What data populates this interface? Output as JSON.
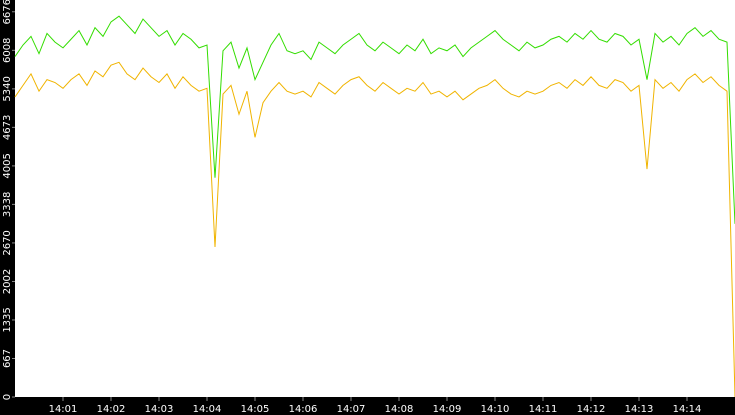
{
  "chart_data": {
    "type": "line",
    "x": [
      "14:00:00",
      "14:00:10",
      "14:00:20",
      "14:00:30",
      "14:00:40",
      "14:00:50",
      "14:01:00",
      "14:01:10",
      "14:01:20",
      "14:01:30",
      "14:01:40",
      "14:01:50",
      "14:02:00",
      "14:02:10",
      "14:02:20",
      "14:02:30",
      "14:02:40",
      "14:02:50",
      "14:03:00",
      "14:03:10",
      "14:03:20",
      "14:03:30",
      "14:03:40",
      "14:03:50",
      "14:04:00",
      "14:04:10",
      "14:04:20",
      "14:04:30",
      "14:04:40",
      "14:04:50",
      "14:05:00",
      "14:05:10",
      "14:05:20",
      "14:05:30",
      "14:05:40",
      "14:05:50",
      "14:06:00",
      "14:06:10",
      "14:06:20",
      "14:06:30",
      "14:06:40",
      "14:06:50",
      "14:07:00",
      "14:07:10",
      "14:07:20",
      "14:07:30",
      "14:07:40",
      "14:07:50",
      "14:08:00",
      "14:08:10",
      "14:08:20",
      "14:08:30",
      "14:08:40",
      "14:08:50",
      "14:09:00",
      "14:09:10",
      "14:09:20",
      "14:09:30",
      "14:09:40",
      "14:09:50",
      "14:10:00",
      "14:10:10",
      "14:10:20",
      "14:10:30",
      "14:10:40",
      "14:10:50",
      "14:11:00",
      "14:11:10",
      "14:11:20",
      "14:11:30",
      "14:11:40",
      "14:11:50",
      "14:12:00",
      "14:12:10",
      "14:12:20",
      "14:12:30",
      "14:12:40",
      "14:12:50",
      "14:13:00",
      "14:13:10",
      "14:13:20",
      "14:13:30",
      "14:13:40",
      "14:13:50",
      "14:14:00",
      "14:14:10",
      "14:14:20",
      "14:14:30",
      "14:14:40",
      "14:14:50",
      "14:15:00"
    ],
    "series": [
      {
        "color": "#33dd00",
        "values": [
          5900,
          6100,
          6250,
          5950,
          6300,
          6150,
          6050,
          6200,
          6350,
          6100,
          6400,
          6250,
          6500,
          6600,
          6450,
          6300,
          6550,
          6400,
          6250,
          6350,
          6100,
          6300,
          6200,
          6050,
          6100,
          3800,
          6000,
          6150,
          5700,
          6050,
          5500,
          5800,
          6100,
          6300,
          6000,
          5950,
          6000,
          5850,
          6150,
          6050,
          5950,
          6100,
          6200,
          6300,
          6100,
          6000,
          6150,
          6050,
          5950,
          6100,
          6000,
          6200,
          5950,
          6050,
          6000,
          6100,
          5900,
          6050,
          6150,
          6250,
          6350,
          6200,
          6100,
          6000,
          6150,
          6050,
          6100,
          6200,
          6250,
          6150,
          6300,
          6200,
          6350,
          6200,
          6150,
          6300,
          6250,
          6100,
          6200,
          5500,
          6300,
          6150,
          6250,
          6100,
          6300,
          6400,
          6250,
          6350,
          6200,
          6150,
          3000
        ]
      },
      {
        "color": "#f0b400",
        "values": [
          5200,
          5400,
          5600,
          5300,
          5500,
          5450,
          5350,
          5500,
          5600,
          5400,
          5650,
          5550,
          5750,
          5800,
          5600,
          5500,
          5700,
          5550,
          5450,
          5600,
          5350,
          5550,
          5400,
          5300,
          5350,
          2600,
          5250,
          5400,
          4900,
          5300,
          4500,
          5100,
          5300,
          5450,
          5300,
          5250,
          5300,
          5200,
          5450,
          5350,
          5250,
          5400,
          5500,
          5550,
          5400,
          5300,
          5450,
          5350,
          5250,
          5350,
          5300,
          5450,
          5250,
          5300,
          5200,
          5300,
          5150,
          5250,
          5350,
          5400,
          5500,
          5350,
          5250,
          5200,
          5300,
          5250,
          5300,
          5400,
          5450,
          5350,
          5500,
          5400,
          5550,
          5400,
          5350,
          5500,
          5450,
          5300,
          5400,
          3950,
          5500,
          5350,
          5450,
          5300,
          5500,
          5600,
          5450,
          5550,
          5400,
          5300,
          0
        ]
      }
    ],
    "xlim": [
      "14:00:00",
      "14:15:00"
    ],
    "xticks": [
      "14:01",
      "14:02",
      "14:03",
      "14:04",
      "14:05",
      "14:06",
      "14:07",
      "14:08",
      "14:09",
      "14:10",
      "14:11",
      "14:12",
      "14:13",
      "14:14"
    ],
    "ylim": [
      0,
      6880
    ],
    "yticks": [
      0,
      667,
      1335,
      2002,
      2670,
      3338,
      4005,
      4673,
      5340,
      6008,
      6676
    ]
  }
}
